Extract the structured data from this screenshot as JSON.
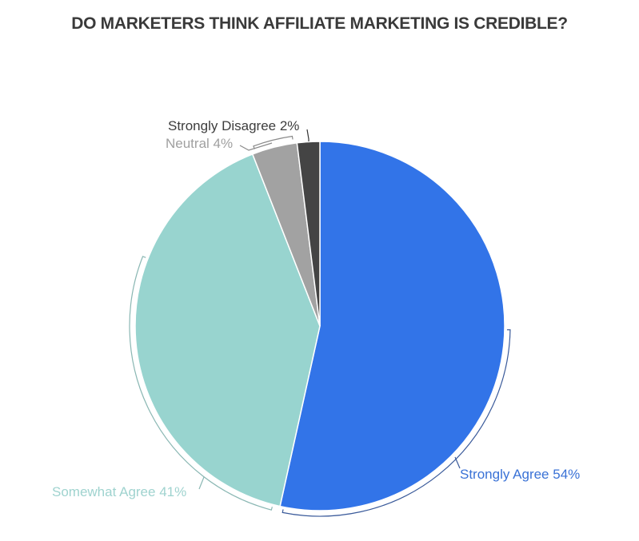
{
  "title": "DO MARKETERS THINK AFFILIATE MARKETING IS CREDIBLE?",
  "chart_data": {
    "type": "pie",
    "title": "DO MARKETERS THINK AFFILIATE MARKETING IS CREDIBLE?",
    "start_angle": "12 o'clock, clockwise",
    "categories": [
      "Strongly Agree",
      "Somewhat Agree",
      "Neutral",
      "Strongly Disagree"
    ],
    "values": [
      54,
      41,
      4,
      2
    ],
    "unit": "%",
    "colors": [
      "#3274e8",
      "#98d4cf",
      "#a2a2a2",
      "#444444"
    ],
    "legend": "none (direct labels)"
  },
  "labels": {
    "strongly_agree": "Strongly Agree 54%",
    "somewhat_agree": "Somewhat Agree 41%",
    "neutral": "Neutral 4%",
    "strongly_disagree": "Strongly Disagree 2%"
  },
  "label_colors": {
    "strongly_agree": "#3a72d6",
    "somewhat_agree": "#9fd3cf",
    "neutral": "#a0a0a0",
    "strongly_disagree": "#3d3d3d"
  }
}
